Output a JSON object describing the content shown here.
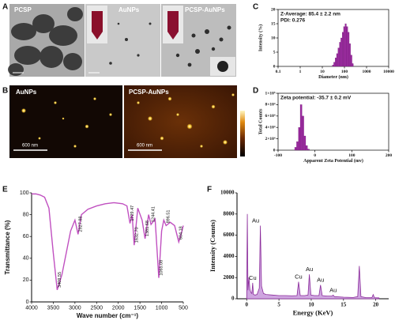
{
  "panel_labels": [
    "A",
    "B",
    "C",
    "D",
    "E",
    "F"
  ],
  "tem": {
    "labels": [
      "PCSP",
      "AuNPs",
      "PCSP-AuNPs"
    ]
  },
  "afm": {
    "labels": [
      "AuNPs",
      "PCSP-AuNPs"
    ],
    "scale_bars": [
      "600 nm",
      "600 nm"
    ]
  },
  "chart_data": [
    {
      "type": "histogram",
      "x_label": "Diameter (nm)",
      "y_label": "Intensity (%)",
      "notes": [
        "Z-Average: 85.4 ± 2.2 nm",
        "PDI: 0.276"
      ],
      "bins": [
        28.2,
        32.7,
        37.8,
        43.8,
        50.7,
        58.8,
        68.1,
        78.8,
        91.3,
        105.7,
        122.4,
        141.8,
        164.2,
        190.1,
        220.2,
        255.0
      ],
      "values": [
        0.5,
        1.5,
        3,
        4.5,
        6.5,
        8.5,
        10,
        12,
        14,
        15,
        14,
        12,
        8,
        4,
        1
      ],
      "color": "#9b2a9f",
      "xscale": "log",
      "xlim": [
        0.1,
        10000
      ],
      "xticks": [
        0.1,
        1,
        10,
        100,
        1000,
        10000
      ],
      "ylim": [
        0,
        20
      ],
      "yticks": [
        0,
        5,
        10,
        15,
        20
      ],
      "box": true
    },
    {
      "type": "histogram",
      "x_label": "Apparent Zeta Potential (mv)",
      "y_label": "Total Counts",
      "notes": [
        "Zeta potential: -35.7 ± 0.2 mV"
      ],
      "bins": [
        -55,
        -50,
        -45,
        -40,
        -35,
        -30,
        -25,
        -20,
        -15
      ],
      "values": [
        5000,
        15000,
        40000,
        80000,
        60000,
        25000,
        8000,
        2000
      ],
      "color": "#9b2a9f",
      "xlim": [
        -100,
        200
      ],
      "xticks": [
        -100,
        0,
        100,
        200
      ],
      "ylim": [
        0,
        100000
      ],
      "yticks": [
        0,
        {
          "value": 20000,
          "label": "2×10⁴"
        },
        {
          "value": 40000,
          "label": "4×10⁴"
        },
        {
          "value": 60000,
          "label": "6×10⁴"
        },
        {
          "value": 80000,
          "label": "8×10⁴"
        },
        {
          "value": 100000,
          "label": "1×10⁵"
        }
      ],
      "box": true
    },
    {
      "type": "line",
      "x_label": "Wave number (cm⁻¹)",
      "y_label": "Transmittance (%)",
      "x": [
        4000,
        3900,
        3800,
        3700,
        3600,
        3500,
        3409.55,
        3300,
        3200,
        3100,
        3000,
        2927.88,
        2850,
        2700,
        2500,
        2300,
        2100,
        1900,
        1800,
        1729.47,
        1680,
        1632.7,
        1550,
        1450,
        1381.68,
        1300,
        1244.41,
        1150,
        1065.08,
        1000,
        950,
        896.51,
        800,
        700,
        604.18,
        550,
        500
      ],
      "values": [
        99,
        99,
        98,
        96,
        86,
        45,
        11,
        25,
        45,
        65,
        75,
        62,
        80,
        85,
        88,
        90,
        91,
        90,
        88,
        72,
        80,
        52,
        86,
        75,
        58,
        80,
        71,
        76,
        22,
        65,
        75,
        70,
        73,
        70,
        55,
        62,
        70
      ],
      "color": "#c050c0",
      "annotations": [
        {
          "text": "3409.55",
          "x": 3409.55
        },
        {
          "text": "2927.88",
          "x": 2927.88
        },
        {
          "text": "1729.47",
          "x": 1729.47
        },
        {
          "text": "1632.70",
          "x": 1632.7
        },
        {
          "text": "1381.68",
          "x": 1381.68
        },
        {
          "text": "1244.41",
          "x": 1244.41
        },
        {
          "text": "1065.08",
          "x": 1065.08
        },
        {
          "text": "896.51",
          "x": 896.51
        },
        {
          "text": "604.18",
          "x": 604.18
        }
      ],
      "xlim": [
        4000,
        500
      ],
      "xticks": [
        4000,
        3500,
        3000,
        2500,
        2000,
        1500,
        1000,
        500
      ],
      "ylim": [
        0,
        100
      ],
      "yticks": [
        0,
        20,
        40,
        60,
        80,
        100
      ],
      "box": false
    },
    {
      "type": "area",
      "x_label": "Energy (KeV)",
      "y_label": "Intensity (Counts)",
      "x": [
        0,
        0.1,
        0.2,
        0.35,
        0.5,
        0.65,
        0.8,
        0.93,
        1.05,
        1.3,
        1.6,
        1.95,
        2.12,
        2.3,
        2.6,
        3,
        4,
        5,
        6,
        7,
        7.8,
        8.04,
        8.3,
        9,
        9.5,
        9.71,
        9.95,
        10.5,
        11.2,
        11.44,
        11.7,
        12.5,
        13.2,
        13.4,
        13.6,
        15,
        16.5,
        17.2,
        17.45,
        17.7,
        18.5,
        19.4,
        19.6,
        19.8,
        20.5
      ],
      "values": [
        200,
        8000,
        800,
        2000,
        900,
        600,
        500,
        1500,
        400,
        350,
        400,
        1000,
        6900,
        1200,
        500,
        400,
        350,
        300,
        300,
        280,
        300,
        1600,
        300,
        300,
        350,
        2300,
        350,
        300,
        300,
        1300,
        300,
        250,
        250,
        350,
        200,
        150,
        120,
        200,
        3100,
        200,
        100,
        100,
        400,
        100,
        80
      ],
      "color": "#8a2a9a",
      "fill_color": "#cfa6e0",
      "annotations": [
        {
          "text": "Cu",
          "x": 0.93
        },
        {
          "text": "Au",
          "x": 2.12
        },
        {
          "text": "Cu",
          "x": 8.04
        },
        {
          "text": "Au",
          "x": 9.71
        },
        {
          "text": "Au",
          "x": 11.44
        },
        {
          "text": "Au",
          "x": 13.4
        }
      ],
      "xlim": [
        -1.5,
        22
      ],
      "xticks": [
        0,
        5,
        10,
        15,
        20
      ],
      "ylim": [
        0,
        10000
      ],
      "yticks": [
        0,
        2000,
        4000,
        6000,
        8000,
        10000
      ],
      "box": false
    }
  ]
}
